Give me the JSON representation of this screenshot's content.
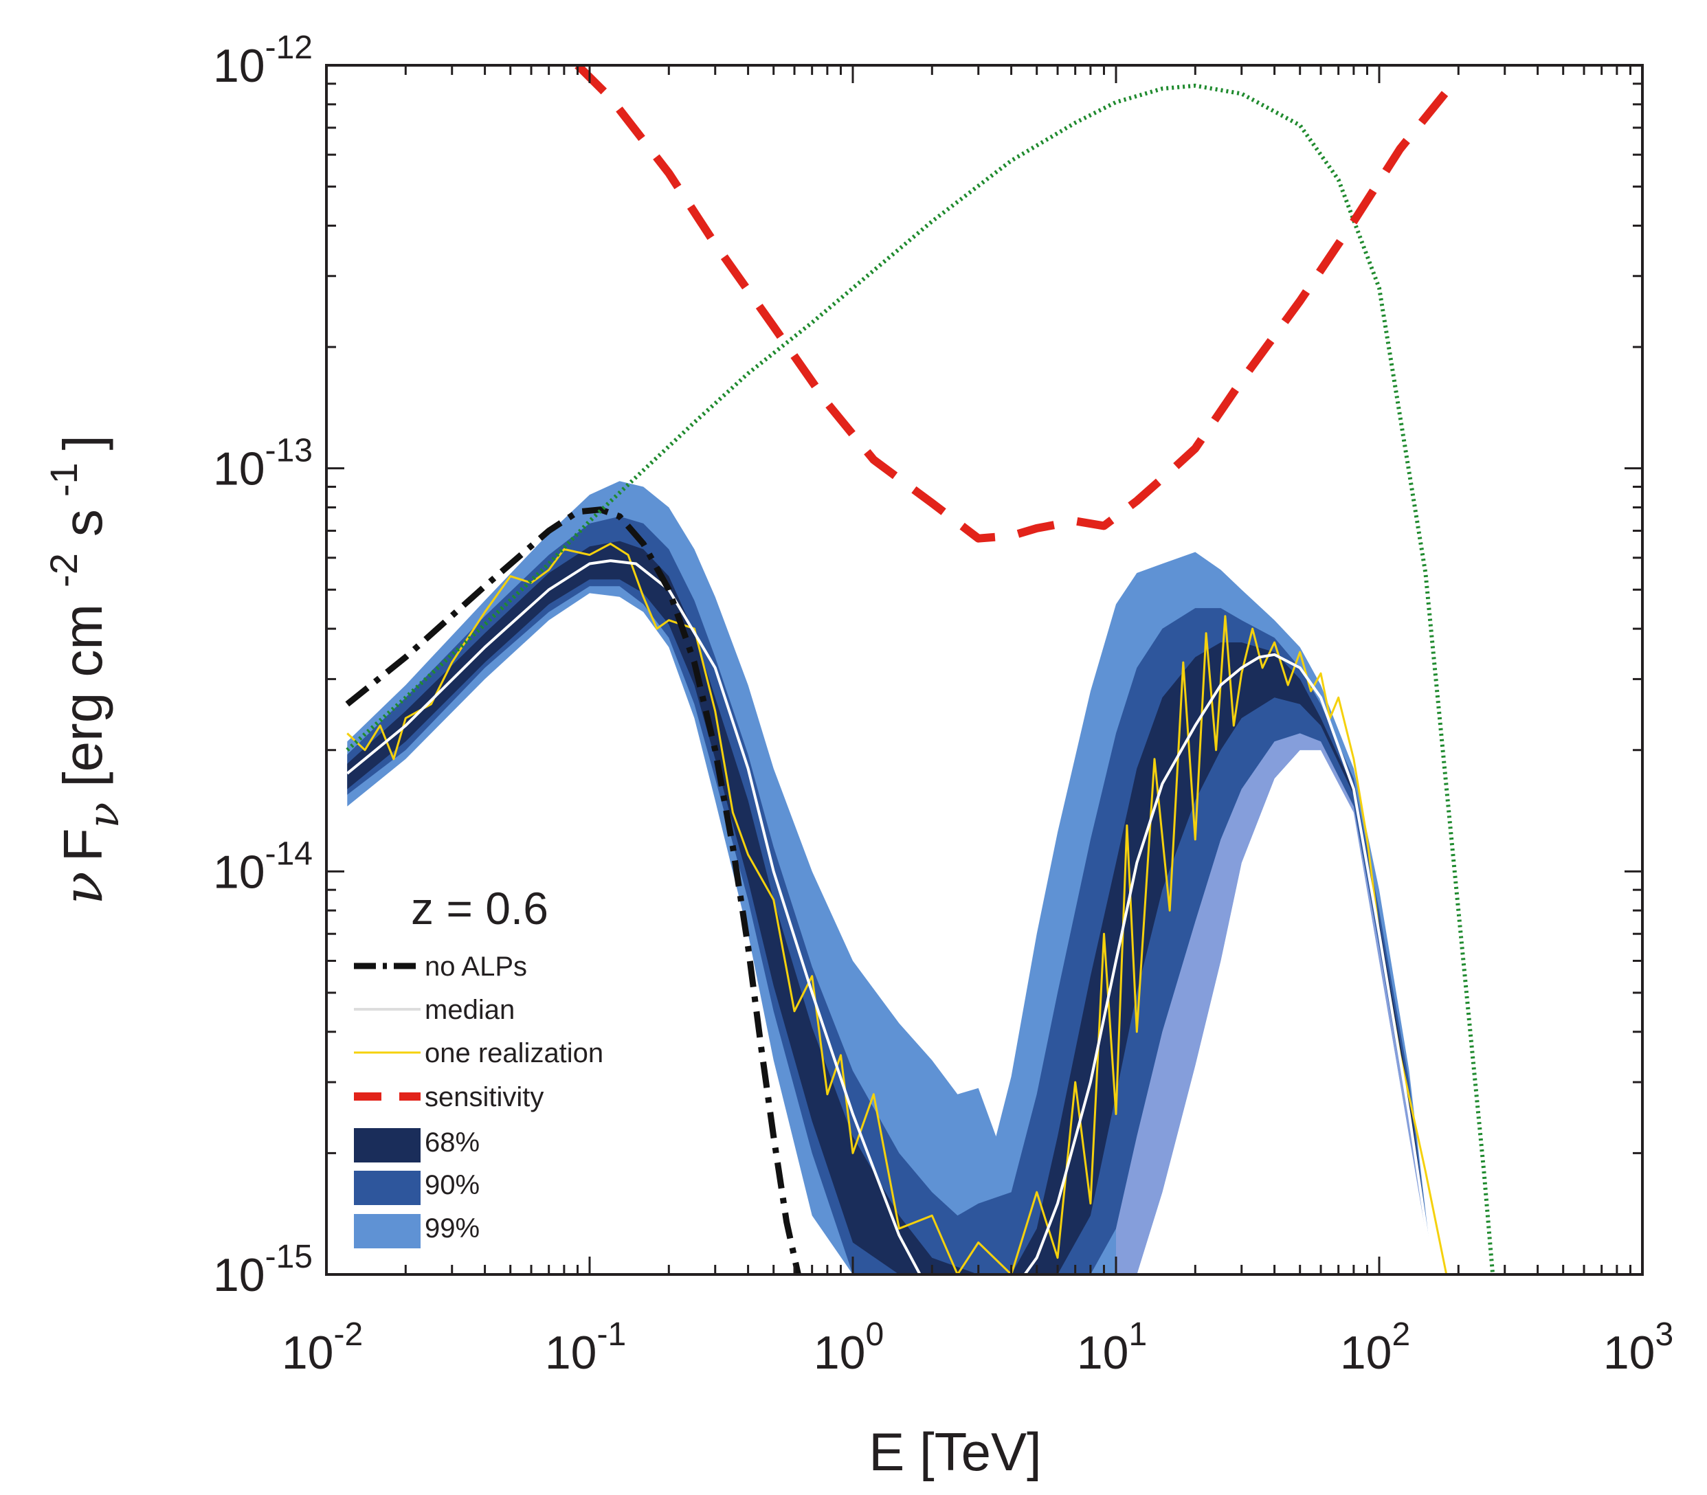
{
  "chart_data": {
    "type": "line",
    "annotation": "z = 0.6",
    "xlabel": "E [TeV]",
    "ylabel_parts": {
      "nu": "ν",
      "F": "F",
      "sub_nu": "ν",
      "unit_open": "[erg cm",
      "exp_cm": "-2",
      "s": "s",
      "exp_s": "-1",
      "unit_close": "]"
    },
    "x_scale": "log",
    "y_scale": "log",
    "xlim": [
      0.01,
      1000
    ],
    "ylim": [
      1e-15,
      1e-12
    ],
    "x_ticks": [
      {
        "base": "10",
        "exp": "-2",
        "value": 0.01
      },
      {
        "base": "10",
        "exp": "-1",
        "value": 0.1
      },
      {
        "base": "10",
        "exp": "0",
        "value": 1
      },
      {
        "base": "10",
        "exp": "1",
        "value": 10
      },
      {
        "base": "10",
        "exp": "2",
        "value": 100
      },
      {
        "base": "10",
        "exp": "3",
        "value": 1000
      }
    ],
    "y_ticks": [
      {
        "base": "10",
        "exp": "-12",
        "value": 1e-12
      },
      {
        "base": "10",
        "exp": "-13",
        "value": 1e-13
      },
      {
        "base": "10",
        "exp": "-14",
        "value": 1e-14
      },
      {
        "base": "10",
        "exp": "-15",
        "value": 1e-15
      }
    ],
    "colors": {
      "no_alps": "#111111",
      "median": "#ffffff",
      "realization": "#f5d10d",
      "sensitivity": "#e2231a",
      "intrinsic": "#1f8a2e",
      "band68": "#1a2d5a",
      "band90": "#2e569c",
      "band99": "#5f92d4",
      "band99_low": "#8aa0dc"
    },
    "legend": [
      {
        "key": "no_alps",
        "label": "no ALPs",
        "style": "dash-dot"
      },
      {
        "key": "median",
        "label": "median",
        "style": "solid-white"
      },
      {
        "key": "realization",
        "label": "one realization",
        "style": "solid-yellow"
      },
      {
        "key": "sensitivity",
        "label": "sensitivity",
        "style": "dashed-red"
      },
      {
        "key": "band68",
        "label": "68%",
        "style": "patch"
      },
      {
        "key": "band90",
        "label": "90%",
        "style": "patch"
      },
      {
        "key": "band99",
        "label": "99%",
        "style": "patch"
      }
    ],
    "series": [
      {
        "name": "intrinsic spectrum",
        "style": "dotted-green",
        "x": [
          0.012,
          0.02,
          0.04,
          0.07,
          0.1,
          0.15,
          0.25,
          0.4,
          0.7,
          1,
          2,
          4,
          7,
          10,
          15,
          20,
          30,
          50,
          70,
          100,
          150,
          200,
          250,
          270
        ],
        "y": [
          2e-14,
          2.7e-14,
          4.1e-14,
          5.8e-14,
          7.4e-14,
          9.5e-14,
          1.3e-13,
          1.72e-13,
          2.3e-13,
          2.8e-13,
          4.1e-13,
          5.8e-13,
          7.2e-13,
          8.1e-13,
          8.75e-13,
          8.9e-13,
          8.5e-13,
          7.1e-13,
          5.2e-13,
          2.8e-13,
          5.5e-14,
          8e-15,
          1.8e-15,
          1e-15
        ]
      },
      {
        "name": "sensitivity",
        "style": "dashed-red",
        "x": [
          0.09,
          0.12,
          0.2,
          0.3,
          0.5,
          0.8,
          1.2,
          2,
          3,
          4,
          5,
          7,
          9,
          12,
          16,
          20,
          30,
          50,
          80,
          120,
          180
        ],
        "y": [
          1e-12,
          8.3e-13,
          5.4e-13,
          3.6e-13,
          2.25e-13,
          1.45e-13,
          1.05e-13,
          8.2e-14,
          6.7e-14,
          6.8e-14,
          7.1e-14,
          7.4e-14,
          7.2e-14,
          8.3e-14,
          9.8e-14,
          1.12e-13,
          1.65e-13,
          2.6e-13,
          4.1e-13,
          6.2e-13,
          8.6e-13
        ]
      },
      {
        "name": "no ALPs",
        "style": "dash-dot",
        "x": [
          0.012,
          0.02,
          0.04,
          0.07,
          0.09,
          0.11,
          0.13,
          0.16,
          0.2,
          0.25,
          0.3,
          0.35,
          0.4,
          0.45,
          0.5,
          0.56,
          0.62
        ],
        "y": [
          2.6e-14,
          3.4e-14,
          5.1e-14,
          7e-14,
          7.8e-14,
          7.9e-14,
          7.6e-14,
          6.5e-14,
          5e-14,
          3.3e-14,
          2e-14,
          1.15e-14,
          6.5e-15,
          3.6e-15,
          2.2e-15,
          1.35e-15,
          1e-15
        ]
      },
      {
        "name": "median",
        "style": "solid-white",
        "x": [
          0.012,
          0.02,
          0.04,
          0.07,
          0.1,
          0.12,
          0.15,
          0.2,
          0.3,
          0.4,
          0.5,
          0.7,
          1,
          1.5,
          1.8,
          2.5,
          3.5,
          4.5,
          5,
          6,
          8,
          10,
          12,
          15,
          20,
          25,
          30,
          35,
          40,
          50,
          60,
          80,
          100,
          130,
          160
        ],
        "y": [
          1.75e-14,
          2.3e-14,
          3.6e-14,
          5e-14,
          5.8e-14,
          5.9e-14,
          5.8e-14,
          5e-14,
          3.2e-14,
          1.8e-14,
          1e-14,
          5e-15,
          2.5e-15,
          1.25e-15,
          1e-15,
          1e-15,
          1e-15,
          1e-15,
          1.1e-15,
          1.5e-15,
          3e-15,
          6e-15,
          1.05e-14,
          1.65e-14,
          2.3e-14,
          2.9e-14,
          3.2e-14,
          3.4e-14,
          3.45e-14,
          3.2e-14,
          2.7e-14,
          1.6e-14,
          7e-15,
          2.5e-15,
          1e-15
        ]
      },
      {
        "name": "one realization",
        "style": "solid-yellow",
        "x": [
          0.012,
          0.014,
          0.016,
          0.018,
          0.02,
          0.025,
          0.03,
          0.04,
          0.05,
          0.06,
          0.07,
          0.08,
          0.1,
          0.12,
          0.14,
          0.16,
          0.18,
          0.2,
          0.25,
          0.3,
          0.35,
          0.4,
          0.5,
          0.6,
          0.7,
          0.8,
          0.9,
          1,
          1.2,
          1.5,
          2,
          2.5,
          3,
          4,
          5,
          6,
          7,
          8,
          9,
          10,
          11,
          12,
          14,
          16,
          18,
          20,
          22,
          24,
          26,
          28,
          30,
          33,
          36,
          40,
          45,
          50,
          55,
          60,
          65,
          70,
          80,
          90,
          100,
          120,
          150,
          180
        ],
        "y": [
          2.2e-14,
          2e-14,
          2.3e-14,
          1.9e-14,
          2.4e-14,
          2.6e-14,
          3.3e-14,
          4.4e-14,
          5.4e-14,
          5.2e-14,
          5.6e-14,
          6.3e-14,
          6.1e-14,
          6.5e-14,
          6.1e-14,
          4.8e-14,
          4e-14,
          4.2e-14,
          4e-14,
          2.5e-14,
          1.4e-14,
          1.1e-14,
          8.5e-15,
          4.5e-15,
          5.5e-15,
          2.8e-15,
          3.5e-15,
          2e-15,
          2.8e-15,
          1.3e-15,
          1.4e-15,
          1e-15,
          1.2e-15,
          1e-15,
          1.6e-15,
          1.1e-15,
          3e-15,
          1.5e-15,
          7e-15,
          2.5e-15,
          1.3e-14,
          4e-15,
          1.9e-14,
          8e-15,
          3.3e-14,
          1.2e-14,
          3.9e-14,
          2e-14,
          4.3e-14,
          2.3e-14,
          3.1e-14,
          4e-14,
          3.2e-14,
          3.7e-14,
          2.9e-14,
          3.5e-14,
          2.8e-14,
          3.1e-14,
          2.4e-14,
          2.7e-14,
          1.9e-14,
          1.2e-14,
          7e-15,
          3.5e-15,
          1.8e-15,
          1e-15
        ]
      }
    ],
    "bands": [
      {
        "name": "99%",
        "x": [
          0.012,
          0.02,
          0.04,
          0.07,
          0.1,
          0.13,
          0.16,
          0.2,
          0.25,
          0.3,
          0.4,
          0.5,
          0.7,
          1,
          1.5,
          2,
          2.5,
          3,
          3.5,
          4,
          5,
          6,
          8,
          10,
          12,
          15,
          20,
          25,
          30,
          40,
          50,
          60,
          80,
          100,
          130,
          160
        ],
        "upper": [
          2.1e-14,
          2.9e-14,
          4.7e-14,
          6.9e-14,
          8.6e-14,
          9.3e-14,
          9e-14,
          8e-14,
          6.3e-14,
          4.8e-14,
          2.9e-14,
          1.8e-14,
          1e-14,
          6e-15,
          4.2e-15,
          3.4e-15,
          2.8e-15,
          2.9e-15,
          2.2e-15,
          3.1e-15,
          7e-15,
          1.25e-14,
          2.8e-14,
          4.6e-14,
          5.5e-14,
          5.8e-14,
          6.2e-14,
          5.6e-14,
          5e-14,
          4.2e-14,
          3.6e-14,
          2.9e-14,
          1.8e-14,
          9e-15,
          3.2e-15,
          1e-15
        ],
        "lower": [
          1.45e-14,
          1.9e-14,
          3e-14,
          4.2e-14,
          4.9e-14,
          4.8e-14,
          4.4e-14,
          3.6e-14,
          2.4e-14,
          1.5e-14,
          7e-15,
          3.4e-15,
          1.4e-15,
          1e-15,
          1e-15,
          1e-15,
          1e-15,
          1e-15,
          1e-15,
          1e-15,
          1e-15,
          1e-15,
          1e-15,
          1e-15,
          1e-15,
          1.6e-15,
          3.3e-15,
          6e-15,
          1.05e-14,
          1.7e-14,
          2e-14,
          2e-14,
          1.4e-14,
          6e-15,
          2.2e-15,
          1e-15
        ]
      },
      {
        "name": "90%",
        "x": [
          0.012,
          0.02,
          0.04,
          0.07,
          0.1,
          0.13,
          0.16,
          0.2,
          0.25,
          0.3,
          0.4,
          0.5,
          0.7,
          1,
          1.5,
          2,
          2.5,
          3,
          4,
          5,
          6,
          8,
          10,
          12,
          15,
          20,
          25,
          30,
          40,
          50,
          60,
          80,
          100,
          130,
          160
        ],
        "upper": [
          1.95e-14,
          2.7e-14,
          4.3e-14,
          6.1e-14,
          7.3e-14,
          7.6e-14,
          7.3e-14,
          6.3e-14,
          4.7e-14,
          3.4e-14,
          1.95e-14,
          1.15e-14,
          5.8e-15,
          3.2e-15,
          2e-15,
          1.6e-15,
          1.4e-15,
          1.5e-15,
          1.6e-15,
          2.8e-15,
          5e-15,
          1.2e-14,
          2.2e-14,
          3.2e-14,
          4e-14,
          4.5e-14,
          4.5e-14,
          4.2e-14,
          3.8e-14,
          3.2e-14,
          2.6e-14,
          1.7e-14,
          8e-15,
          3e-15,
          1e-15
        ],
        "lower": [
          1.55e-14,
          2e-14,
          3.2e-14,
          4.4e-14,
          5.1e-14,
          5.1e-14,
          4.6e-14,
          3.8e-14,
          2.6e-14,
          1.7e-14,
          8.5e-15,
          4.5e-15,
          2e-15,
          1e-15,
          1e-15,
          1e-15,
          1e-15,
          1e-15,
          1e-15,
          1e-15,
          1e-15,
          1e-15,
          1.3e-15,
          2.2e-15,
          4e-15,
          7.5e-15,
          1.2e-14,
          1.6e-14,
          2.1e-14,
          2.2e-14,
          2.1e-14,
          1.45e-14,
          6.5e-15,
          2.4e-15,
          1e-15
        ]
      },
      {
        "name": "68%",
        "x": [
          0.012,
          0.02,
          0.04,
          0.07,
          0.1,
          0.13,
          0.16,
          0.2,
          0.25,
          0.3,
          0.4,
          0.5,
          0.7,
          1,
          1.5,
          2,
          3,
          4,
          5,
          6,
          8,
          10,
          12,
          15,
          20,
          25,
          30,
          40,
          50,
          60,
          80,
          100,
          130,
          160
        ],
        "upper": [
          1.85e-14,
          2.5e-14,
          3.9e-14,
          5.5e-14,
          6.4e-14,
          6.6e-14,
          6.3e-14,
          5.4e-14,
          3.9e-14,
          2.7e-14,
          1.5e-14,
          8.5e-15,
          4.1e-15,
          2.2e-15,
          1.4e-15,
          1.1e-15,
          1e-15,
          1e-15,
          1.3e-15,
          2.2e-15,
          5.5e-15,
          1.05e-14,
          1.8e-14,
          2.7e-14,
          3.4e-14,
          3.7e-14,
          3.7e-14,
          3.5e-14,
          3e-14,
          2.4e-14,
          1.6e-14,
          7.5e-15,
          2.8e-15,
          1e-15
        ],
        "lower": [
          1.6e-14,
          2.1e-14,
          3.3e-14,
          4.6e-14,
          5.3e-14,
          5.3e-14,
          4.9e-14,
          4.1e-14,
          2.9e-14,
          1.9e-14,
          9.5e-15,
          5.2e-15,
          2.4e-15,
          1.2e-15,
          1e-15,
          1e-15,
          1e-15,
          1e-15,
          1e-15,
          1e-15,
          1.4e-15,
          2.8e-15,
          5e-15,
          9e-15,
          1.5e-14,
          2e-14,
          2.4e-14,
          2.7e-14,
          2.6e-14,
          2.3e-14,
          1.55e-14,
          7e-15,
          2.6e-15,
          1e-15
        ]
      }
    ]
  }
}
